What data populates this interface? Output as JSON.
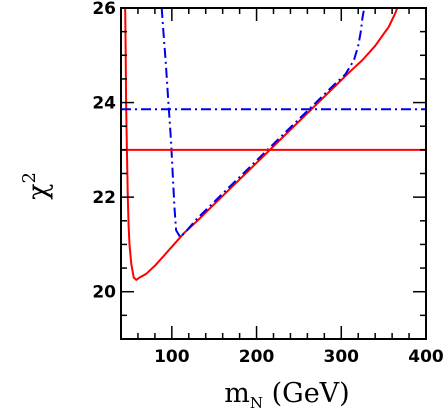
{
  "chart_data": {
    "type": "line",
    "title": "",
    "xlabel_main": "m",
    "xlabel_sub": "N",
    "xlabel_unit": " (GeV)",
    "ylabel_main": "χ",
    "ylabel_sup": "2",
    "xlim": [
      40,
      400
    ],
    "ylim": [
      19,
      26
    ],
    "x_ticks": [
      100,
      200,
      300,
      400
    ],
    "y_ticks": [
      20,
      22,
      24,
      26
    ],
    "x_minor_step": 20,
    "y_minor_step": 0.5,
    "grid": false,
    "legend": "none",
    "series": [
      {
        "style": "solid",
        "color": "#ff0000",
        "x": [
          45,
          45.5,
          46,
          47,
          48,
          49,
          50,
          52,
          55,
          58,
          62,
          70,
          80,
          90,
          100,
          115,
          130,
          150,
          170,
          190,
          210,
          230,
          250,
          270,
          290,
          310,
          325,
          340,
          350,
          356,
          360,
          364,
          366
        ],
        "y": [
          26.0,
          25.0,
          24.0,
          23.0,
          22.0,
          21.4,
          21.0,
          20.6,
          20.3,
          20.25,
          20.3,
          20.38,
          20.55,
          20.75,
          20.95,
          21.25,
          21.5,
          21.85,
          22.2,
          22.55,
          22.9,
          23.25,
          23.6,
          23.95,
          24.3,
          24.65,
          24.9,
          25.2,
          25.45,
          25.6,
          25.75,
          25.9,
          26.0
        ]
      },
      {
        "style": "dashdot",
        "color": "#0000ee",
        "x": [
          88,
          90,
          93,
          96,
          99,
          101,
          103,
          105,
          110,
          118,
          130,
          150,
          170,
          190,
          210,
          230,
          250,
          270,
          290,
          305,
          315,
          320,
          323,
          325,
          327
        ],
        "y": [
          26.0,
          25.5,
          24.8,
          24.0,
          23.2,
          22.5,
          21.8,
          21.3,
          21.15,
          21.3,
          21.55,
          21.9,
          22.25,
          22.6,
          22.95,
          23.3,
          23.65,
          24.0,
          24.35,
          24.6,
          24.9,
          25.2,
          25.5,
          25.8,
          26.0
        ]
      },
      {
        "style": "solid",
        "color": "#ff0000",
        "x": [
          40,
          400
        ],
        "y": [
          23.0,
          23.0
        ]
      },
      {
        "style": "dashdot",
        "color": "#0000ee",
        "x": [
          40,
          400
        ],
        "y": [
          23.86,
          23.86
        ]
      }
    ]
  }
}
